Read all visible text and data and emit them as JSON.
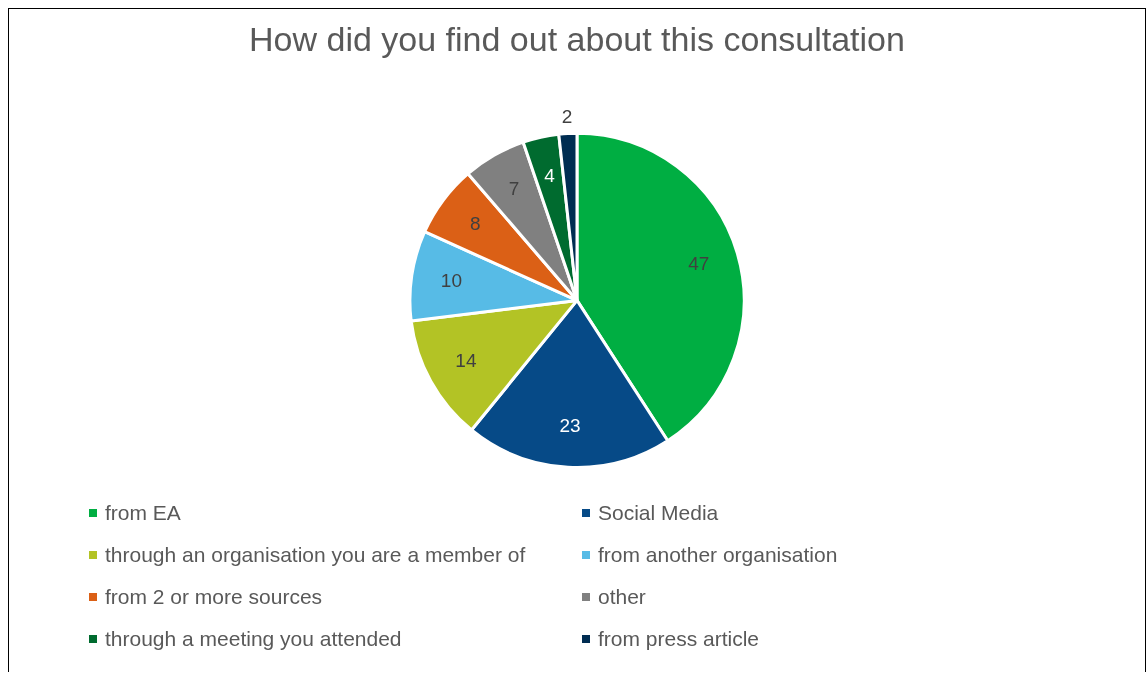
{
  "chart_data": {
    "type": "pie",
    "title": "How did you find out about this consultation",
    "categories": [
      "from EA",
      "Social Media",
      "through an organisation you are a member of",
      "from another organisation",
      "from 2 or more sources",
      "other",
      "through a meeting you attended",
      "from press article"
    ],
    "values": [
      47,
      23,
      14,
      10,
      8,
      7,
      4,
      2
    ],
    "colors": [
      "#00ae42",
      "#064a87",
      "#b3c325",
      "#57bbe6",
      "#db6016",
      "#808080",
      "#006b2f",
      "#002d52"
    ],
    "data_labels": true,
    "legend": "bottom"
  }
}
